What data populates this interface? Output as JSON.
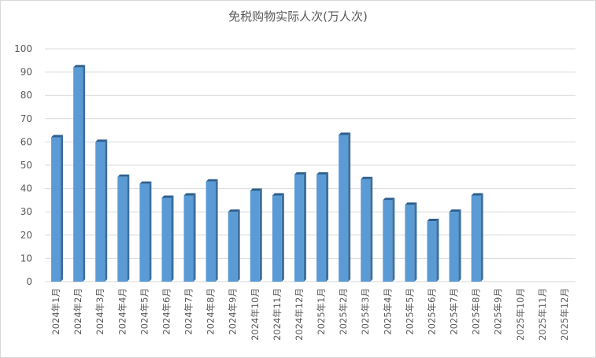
{
  "chart_data": {
    "type": "bar",
    "title": "免税购物实际人次(万人次)",
    "xlabel": "",
    "ylabel": "",
    "ylim": [
      0,
      100
    ],
    "yticks": [
      "0",
      "10",
      "20",
      "30",
      "40",
      "50",
      "60",
      "70",
      "80",
      "90",
      "100"
    ],
    "grid": true,
    "bar_color": "#5b9bd5",
    "categories": [
      "2024年1月",
      "2024年2月",
      "2024年3月",
      "2024年4月",
      "2024年5月",
      "2024年6月",
      "2024年7月",
      "2024年8月",
      "2024年9月",
      "2024年10月",
      "2024年11月",
      "2024年12月",
      "2025年1月",
      "2025年2月",
      "2025年3月",
      "2025年4月",
      "2025年5月",
      "2025年6月",
      "2025年7月",
      "2025年8月",
      "2025年9月",
      "2025年10月",
      "2025年11月",
      "2025年12月"
    ],
    "values": [
      62,
      92,
      60,
      45,
      42,
      36,
      37,
      43,
      30,
      39,
      37,
      46,
      46,
      63,
      44,
      35,
      33,
      26,
      30,
      37,
      null,
      null,
      null,
      null
    ]
  }
}
